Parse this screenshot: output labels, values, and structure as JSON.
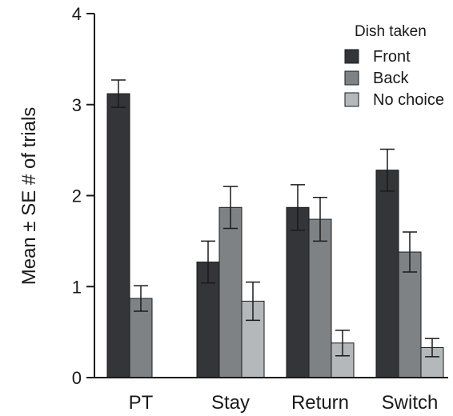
{
  "chart_data": {
    "type": "bar",
    "title": "",
    "xlabel": "",
    "ylabel": "Mean ± SE # of trials",
    "ylim": [
      0,
      4
    ],
    "yticks": [
      0,
      1,
      2,
      3,
      4
    ],
    "grid": false,
    "legend": {
      "title": "Dish taken",
      "placement": "top-right"
    },
    "categories": [
      "PT",
      "Stay",
      "Return",
      "Switch"
    ],
    "series": [
      {
        "name": "Front",
        "color": "#333538",
        "values": [
          3.12,
          1.27,
          1.87,
          2.28
        ],
        "se": [
          0.15,
          0.23,
          0.25,
          0.23
        ]
      },
      {
        "name": "Back",
        "color": "#7f8285",
        "values": [
          0.87,
          1.87,
          1.74,
          1.38
        ],
        "se": [
          0.14,
          0.23,
          0.24,
          0.22
        ]
      },
      {
        "name": "No choice",
        "color": "#b5b8ba",
        "values": [
          0,
          0.84,
          0.38,
          0.33
        ],
        "se": [
          0,
          0.21,
          0.14,
          0.1
        ]
      }
    ]
  }
}
